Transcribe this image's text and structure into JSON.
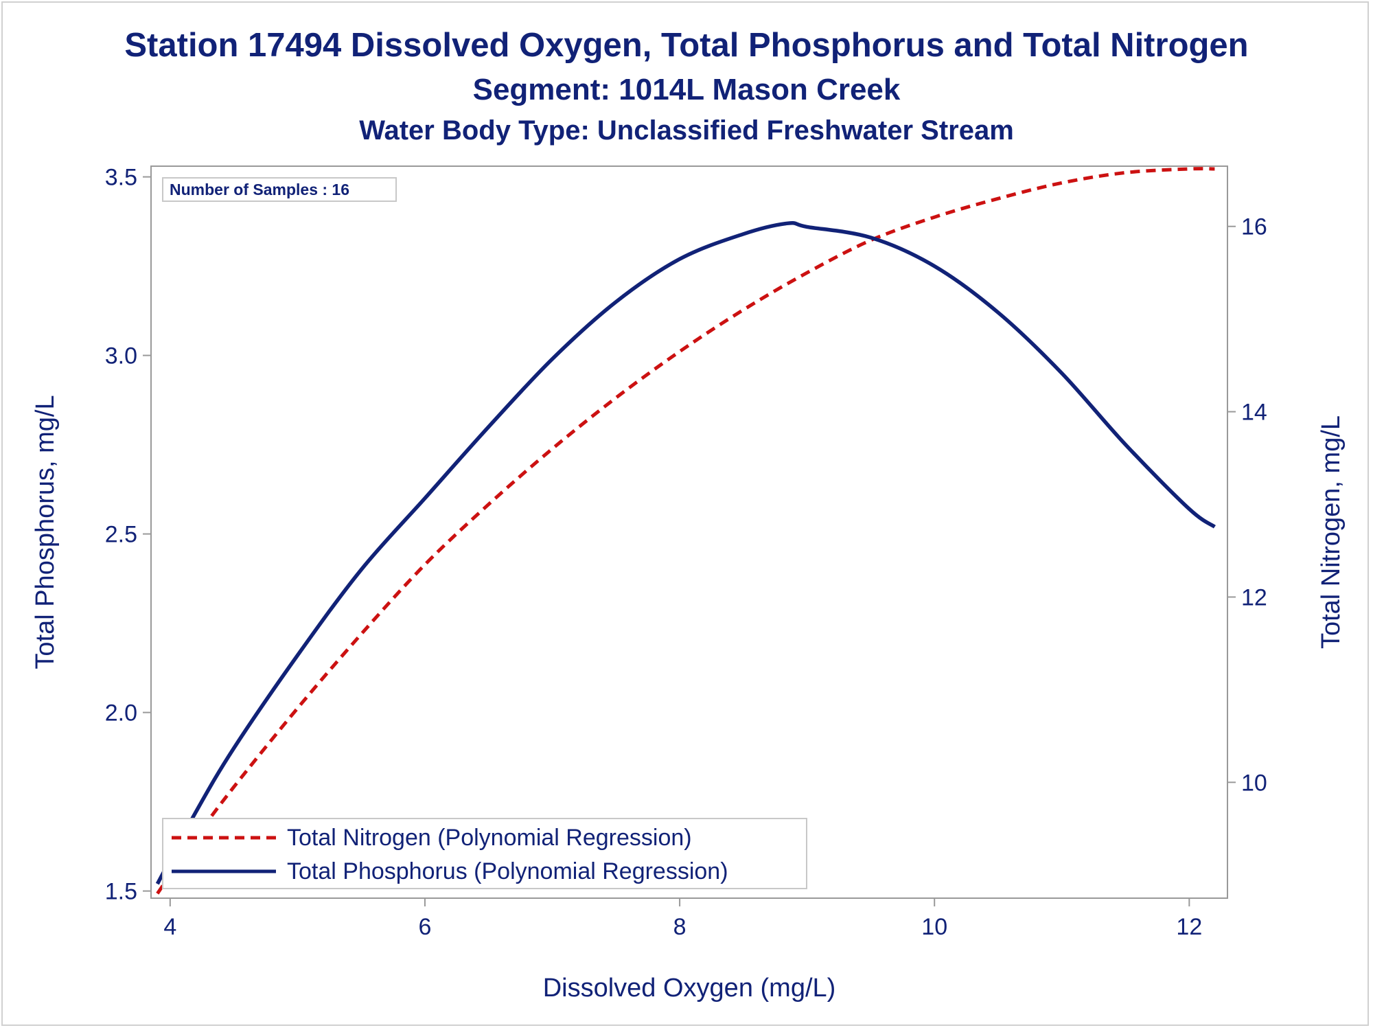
{
  "title": "Station 17494  Dissolved Oxygen, Total Phosphorus and Total Nitrogen",
  "subtitle": "Segment: 1014L  Mason Creek",
  "subtitle2": "Water Body Type: Unclassified Freshwater Stream",
  "colors": {
    "text": "#112277",
    "phosphorus": "#112277",
    "nitrogen": "#cc1111",
    "axis": "#999999"
  },
  "chart_data": {
    "type": "line",
    "title": "Station 17494  Dissolved Oxygen, Total Phosphorus and Total Nitrogen",
    "xlabel": "Dissolved Oxygen (mg/L)",
    "ylabel": "Total Phosphorus, mg/L",
    "y2label": "Total Nitrogen, mg/L",
    "xlim": [
      3.85,
      12.3
    ],
    "ylim": [
      1.48,
      3.53
    ],
    "y2lim": [
      8.75,
      16.65
    ],
    "x_ticks": [
      "4",
      "6",
      "8",
      "10",
      "12"
    ],
    "y_ticks": [
      "1.5",
      "2.0",
      "2.5",
      "3.0",
      "3.5"
    ],
    "y2_ticks": [
      "10",
      "12",
      "14",
      "16"
    ],
    "annotation": "Number of Samples : 16",
    "legend_position": "bottom-left",
    "grid": false,
    "series": [
      {
        "name": "Total Nitrogen (Polynomial Regression)",
        "axis": "y2",
        "style": "dashed",
        "color": "#cc1111",
        "x": [
          3.9,
          4.2,
          4.5,
          5.0,
          5.5,
          6.0,
          6.5,
          7.0,
          7.5,
          8.0,
          8.5,
          9.0,
          9.5,
          10.0,
          10.5,
          11.0,
          11.5,
          12.0,
          12.2
        ],
        "y": [
          8.8,
          9.4,
          9.95,
          10.8,
          11.6,
          12.35,
          13.0,
          13.6,
          14.15,
          14.65,
          15.1,
          15.5,
          15.85,
          16.1,
          16.3,
          16.47,
          16.58,
          16.62,
          16.62
        ]
      },
      {
        "name": "Total Phosphorus (Polynomial Regression)",
        "axis": "y",
        "style": "solid",
        "color": "#112277",
        "x": [
          3.9,
          4.2,
          4.5,
          5.0,
          5.5,
          6.0,
          6.5,
          7.0,
          7.5,
          8.0,
          8.5,
          8.85,
          9.0,
          9.5,
          10.0,
          10.5,
          11.0,
          11.5,
          12.0,
          12.2
        ],
        "y": [
          1.52,
          1.72,
          1.9,
          2.16,
          2.4,
          2.6,
          2.8,
          2.99,
          3.15,
          3.27,
          3.34,
          3.37,
          3.36,
          3.33,
          3.25,
          3.12,
          2.95,
          2.75,
          2.57,
          2.52
        ]
      }
    ]
  }
}
